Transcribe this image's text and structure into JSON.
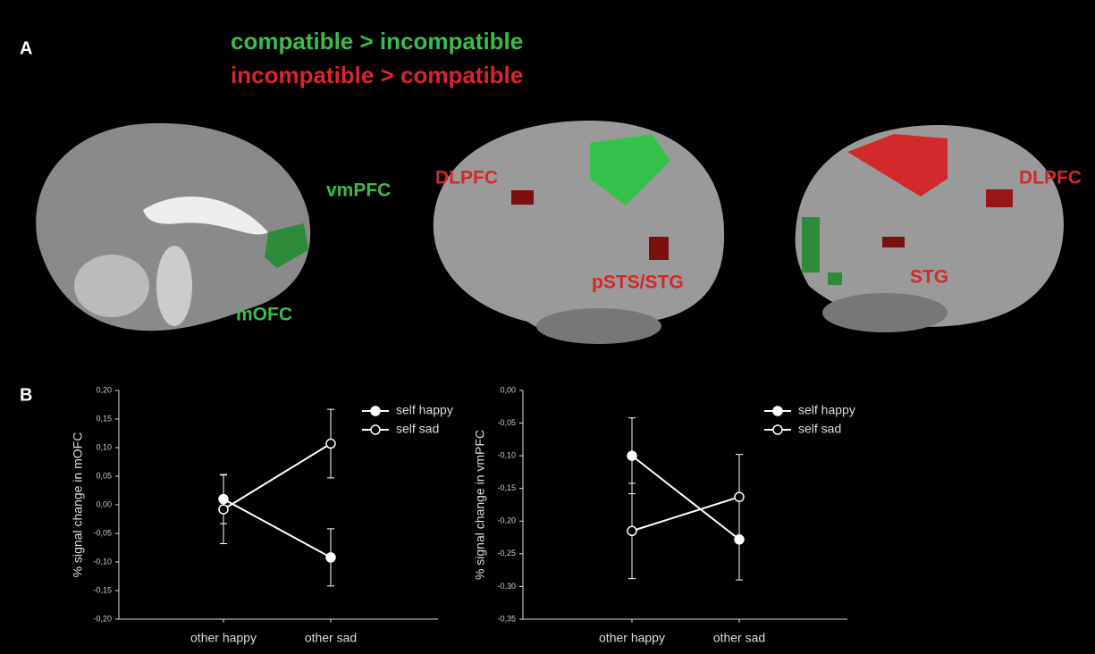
{
  "panel_a": {
    "label": "A",
    "legend": [
      {
        "text": "compatible > incompatible",
        "color": "#3dbb4b"
      },
      {
        "text": "incompatible > compatible",
        "color": "#d8262a"
      }
    ],
    "regions": [
      "vmPFC",
      "mOFC",
      "DLPFC",
      "pSTS/STG",
      "DLPFC",
      "STG"
    ]
  },
  "panel_b": {
    "label": "B"
  },
  "chart_data": [
    {
      "type": "line",
      "y_label": "% signal change in mOFC",
      "categories": [
        "other happy",
        "other sad"
      ],
      "ylim": [
        -0.2,
        0.2
      ],
      "yticks": [
        {
          "value": 0.2,
          "label": "0,20"
        },
        {
          "value": 0.15,
          "label": "0,15"
        },
        {
          "value": 0.1,
          "label": "0,10"
        },
        {
          "value": 0.05,
          "label": "0,05"
        },
        {
          "value": 0,
          "label": "0,00"
        },
        {
          "value": -0.05,
          "label": "-0,05"
        },
        {
          "value": -0.1,
          "label": "-0,10"
        },
        {
          "value": -0.15,
          "label": "-0,15"
        },
        {
          "value": -0.2,
          "label": "-0,20"
        }
      ],
      "series": [
        {
          "name": "self happy",
          "color": "#ffffff",
          "filled": true,
          "values": [
            0.01,
            -0.092
          ],
          "errors": [
            0.043,
            0.05
          ]
        },
        {
          "name": "self sad",
          "color": "#ffffff",
          "filled": false,
          "values": [
            -0.008,
            0.107
          ],
          "errors": [
            0.06,
            0.06
          ]
        }
      ]
    },
    {
      "type": "line",
      "y_label": "% signal change in vmPFC",
      "categories": [
        "other happy",
        "other sad"
      ],
      "ylim": [
        -0.35,
        0
      ],
      "yticks": [
        {
          "value": 0,
          "label": "0,00"
        },
        {
          "value": -0.05,
          "label": "-0,05"
        },
        {
          "value": -0.1,
          "label": "-0,10"
        },
        {
          "value": -0.15,
          "label": "-0,15"
        },
        {
          "value": -0.2,
          "label": "-0,20"
        },
        {
          "value": -0.25,
          "label": "-0,25"
        },
        {
          "value": -0.3,
          "label": "-0,30"
        },
        {
          "value": -0.35,
          "label": "-0,35"
        }
      ],
      "series": [
        {
          "name": "self happy",
          "color": "#ffffff",
          "filled": true,
          "values": [
            -0.1,
            -0.228
          ],
          "errors": [
            0.058,
            0.062
          ]
        },
        {
          "name": "self sad",
          "color": "#ffffff",
          "filled": false,
          "values": [
            -0.215,
            -0.163
          ],
          "errors": [
            0.073,
            0.065
          ]
        }
      ]
    }
  ]
}
